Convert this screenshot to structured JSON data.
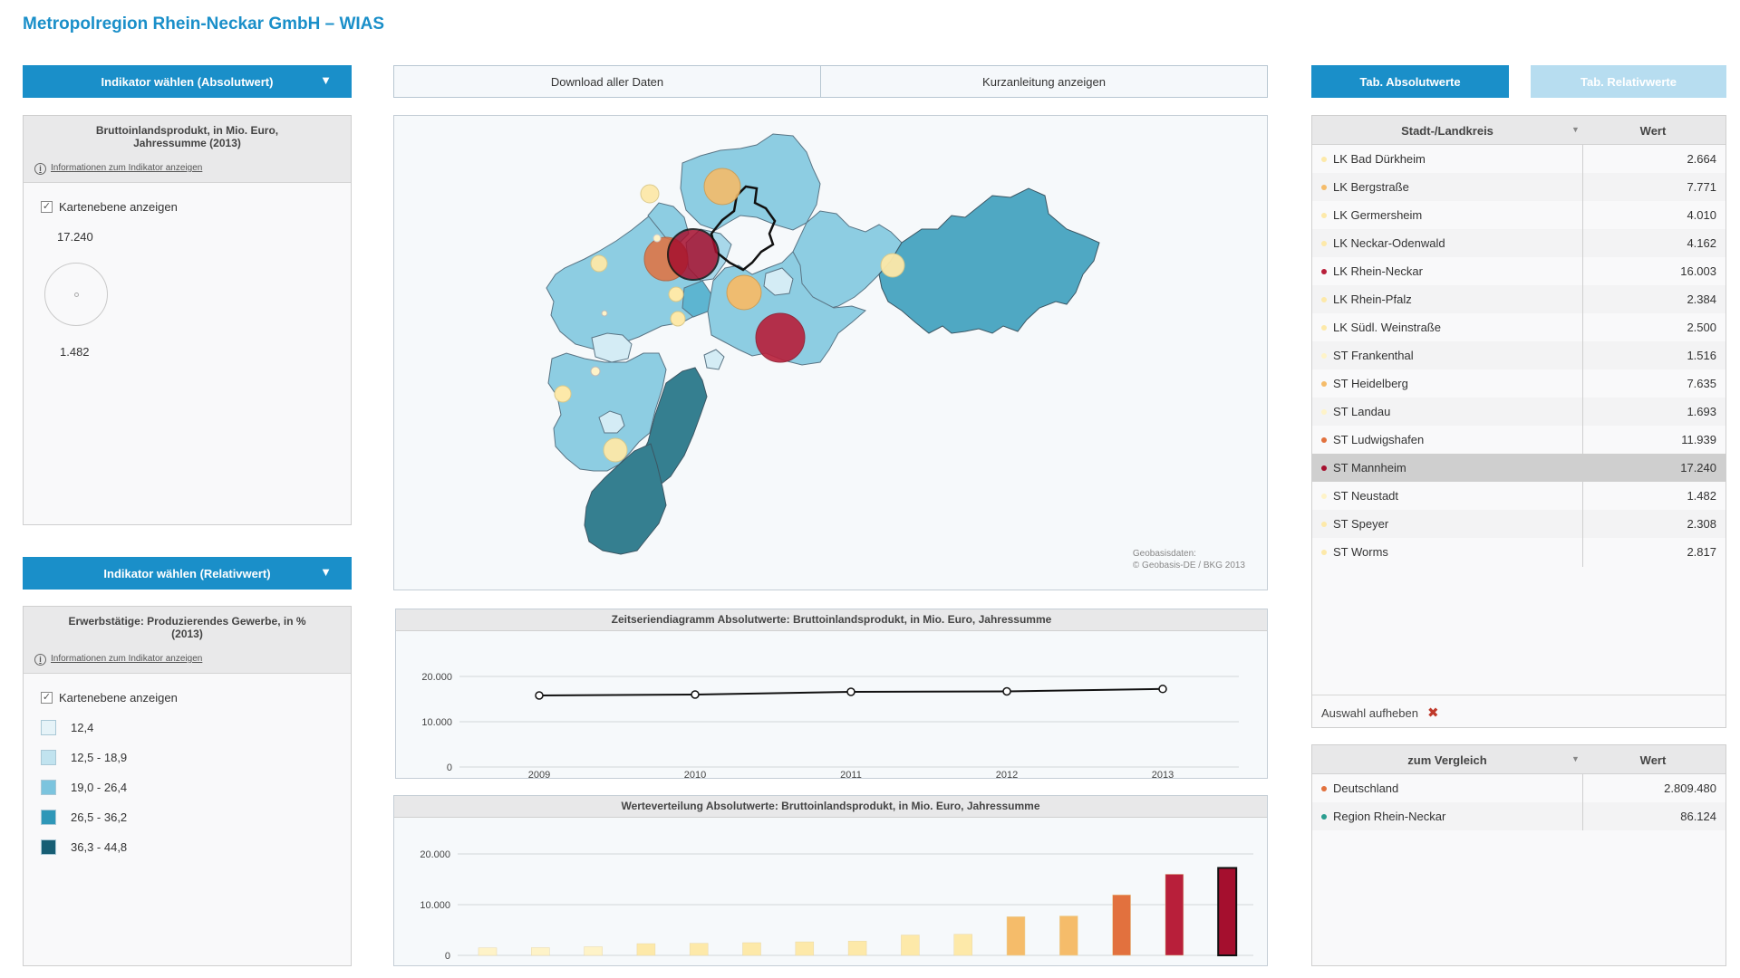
{
  "app": {
    "title": "Metropolregion Rhein-Neckar GmbH – WIAS"
  },
  "colors": {
    "accent": "#1a8fc9",
    "accent_light": "#b7ddf0",
    "selected_row": "#cfcfcf"
  },
  "indicator_abs": {
    "button_label": "Indikator wählen (Absolutwert)",
    "title": "Bruttoinlandsprodukt, in Mio. Euro, Jahressumme (2013)",
    "info_link": "Informationen zum Indikator anzeigen",
    "layer_label": "Kartenebene anzeigen",
    "legend_max": "17.240",
    "legend_min": "1.482"
  },
  "indicator_rel": {
    "button_label": "Indikator wählen (Relativwert)",
    "title": "Erwerbstätige: Produzierendes Gewerbe, in % (2013)",
    "info_link": "Informationen zum Indikator anzeigen",
    "layer_label": "Kartenebene anzeigen",
    "classes": [
      {
        "label": "12,4",
        "color": "#e6f3f8"
      },
      {
        "label": "12,5 - 18,9",
        "color": "#c1e3ef"
      },
      {
        "label": "19,0 - 26,4",
        "color": "#7cc4de"
      },
      {
        "label": "26,5 - 36,2",
        "color": "#2f97b8"
      },
      {
        "label": "36,3 - 44,8",
        "color": "#175e74"
      }
    ]
  },
  "top_buttons": {
    "download": "Download aller Daten",
    "guide": "Kurzanleitung anzeigen"
  },
  "tabs": {
    "absolute": "Tab. Absolutwerte",
    "relative": "Tab. Relativwerte"
  },
  "map": {
    "attribution_1": "Geobasisdaten:",
    "attribution_2": "© Geobasis-DE / BKG 2013"
  },
  "table": {
    "col_name": "Stadt-/Landkreis",
    "col_value": "Wert",
    "rows": [
      {
        "name": "LK Bad Dürkheim",
        "value": "2.664",
        "color": "#fde9a9",
        "selected": false
      },
      {
        "name": "LK Bergstraße",
        "value": "7.771",
        "color": "#f5bc6a",
        "selected": false
      },
      {
        "name": "LK Germersheim",
        "value": "4.010",
        "color": "#fde9a9",
        "selected": false
      },
      {
        "name": "LK Neckar-Odenwald",
        "value": "4.162",
        "color": "#fde9a9",
        "selected": false
      },
      {
        "name": "LK Rhein-Neckar",
        "value": "16.003",
        "color": "#b81f3a",
        "selected": false
      },
      {
        "name": "LK Rhein-Pfalz",
        "value": "2.384",
        "color": "#fde9a9",
        "selected": false
      },
      {
        "name": "LK Südl. Weinstraße",
        "value": "2.500",
        "color": "#fde9a9",
        "selected": false
      },
      {
        "name": "ST Frankenthal",
        "value": "1.516",
        "color": "#fef3c8",
        "selected": false
      },
      {
        "name": "ST Heidelberg",
        "value": "7.635",
        "color": "#f5bc6a",
        "selected": false
      },
      {
        "name": "ST Landau",
        "value": "1.693",
        "color": "#fef3c8",
        "selected": false
      },
      {
        "name": "ST Ludwigshafen",
        "value": "11.939",
        "color": "#e2713e",
        "selected": false
      },
      {
        "name": "ST Mannheim",
        "value": "17.240",
        "color": "#a50f2e",
        "selected": true
      },
      {
        "name": "ST Neustadt",
        "value": "1.482",
        "color": "#fef3c8",
        "selected": false
      },
      {
        "name": "ST Speyer",
        "value": "2.308",
        "color": "#fde9a9",
        "selected": false
      },
      {
        "name": "ST Worms",
        "value": "2.817",
        "color": "#fde9a9",
        "selected": false
      }
    ],
    "deselect_label": "Auswahl aufheben"
  },
  "compare": {
    "col_name": "zum Vergleich",
    "col_value": "Wert",
    "rows": [
      {
        "name": "Deutschland",
        "value": "2.809.480",
        "color": "#e2713e"
      },
      {
        "name": "Region Rhein-Neckar",
        "value": "86.124",
        "color": "#2a9d8f"
      }
    ]
  },
  "chart_data": [
    {
      "type": "line",
      "title": "Zeitseriendiagramm Absolutwerte: Bruttoinlandsprodukt, in Mio. Euro, Jahressumme",
      "x": [
        "2009",
        "2010",
        "2011",
        "2012",
        "2013"
      ],
      "series": [
        {
          "values": [
            15800,
            16000,
            16600,
            16700,
            17240
          ]
        }
      ],
      "yticks": [
        "20.000",
        "10.000",
        "0"
      ],
      "ylim": [
        0,
        20000
      ],
      "grid": true
    },
    {
      "type": "bar",
      "title": "Werteverteilung Absolutwerte: Bruttoinlandsprodukt, in Mio. Euro, Jahressumme",
      "values": [
        1482,
        1516,
        1693,
        2308,
        2384,
        2500,
        2664,
        2817,
        4010,
        4162,
        7635,
        7771,
        11939,
        16003,
        17240
      ],
      "colors": [
        "#fef3c8",
        "#fef3c8",
        "#fef3c8",
        "#fde9a9",
        "#fde9a9",
        "#fde9a9",
        "#fde9a9",
        "#fde9a9",
        "#fde9a9",
        "#fde9a9",
        "#f5bc6a",
        "#f5bc6a",
        "#e2713e",
        "#b81f3a",
        "#a50f2e"
      ],
      "highlight_index": 14,
      "yticks": [
        "20.000",
        "10.000",
        "0"
      ],
      "ylim": [
        0,
        20000
      ],
      "grid": true
    }
  ]
}
